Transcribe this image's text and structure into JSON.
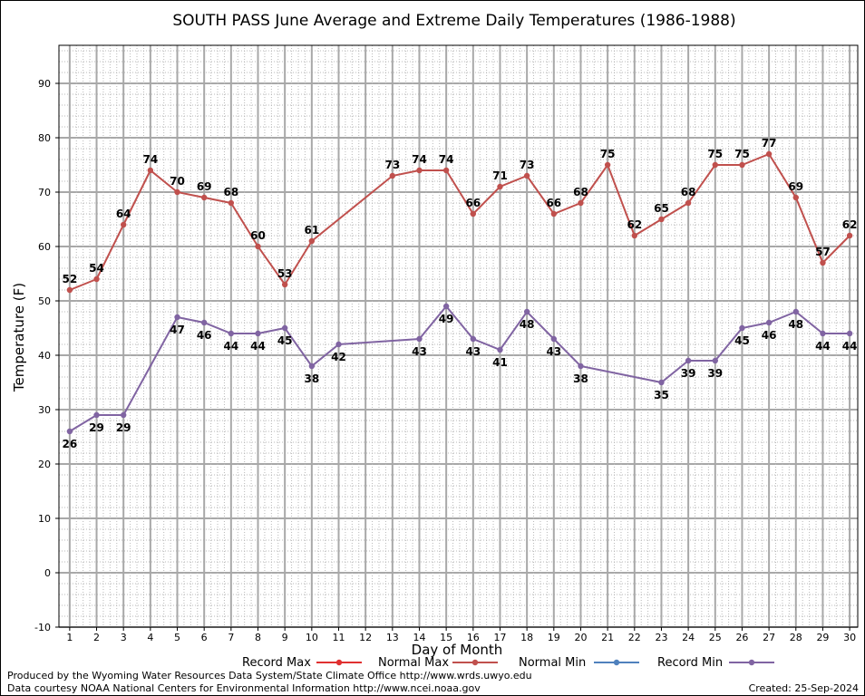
{
  "chart_data": {
    "type": "line",
    "title": "SOUTH PASS June Average and Extreme Daily Temperatures (1986-1988)",
    "xlabel": "Day of Month",
    "ylabel": "Temperature (F)",
    "ylim": [
      -10,
      97
    ],
    "xlim": [
      0.6,
      30.3
    ],
    "yticks": [
      -10,
      0,
      10,
      20,
      30,
      40,
      50,
      60,
      70,
      80,
      90
    ],
    "xticks": [
      1,
      2,
      3,
      4,
      5,
      6,
      7,
      8,
      9,
      10,
      11,
      12,
      13,
      14,
      15,
      16,
      17,
      18,
      19,
      20,
      21,
      22,
      23,
      24,
      25,
      26,
      27,
      28,
      29,
      30
    ],
    "grid": true,
    "legend_position": "bottom",
    "legend": [
      {
        "name": "Record Max",
        "color": "#e03030"
      },
      {
        "name": "Normal Max",
        "color": "#c0504d"
      },
      {
        "name": "Normal Min",
        "color": "#4f81bd"
      },
      {
        "name": "Record Min",
        "color": "#8064a2"
      }
    ],
    "series": [
      {
        "name": "Normal Max",
        "color": "#c0504d",
        "points": [
          [
            1,
            52
          ],
          [
            2,
            54
          ],
          [
            3,
            64
          ],
          [
            4,
            74
          ],
          [
            5,
            70
          ],
          [
            6,
            69
          ],
          [
            7,
            68
          ],
          [
            8,
            60
          ],
          [
            9,
            53
          ],
          [
            10,
            61
          ],
          [
            13,
            73
          ],
          [
            14,
            74
          ],
          [
            15,
            74
          ],
          [
            16,
            66
          ],
          [
            17,
            71
          ],
          [
            18,
            73
          ],
          [
            19,
            66
          ],
          [
            20,
            68
          ],
          [
            21,
            75
          ],
          [
            22,
            62
          ],
          [
            23,
            65
          ],
          [
            24,
            68
          ],
          [
            25,
            75
          ],
          [
            26,
            75
          ],
          [
            27,
            77
          ],
          [
            28,
            69
          ],
          [
            29,
            57
          ],
          [
            30,
            62
          ]
        ]
      },
      {
        "name": "Record Min",
        "color": "#8064a2",
        "points": [
          [
            1,
            26
          ],
          [
            2,
            29
          ],
          [
            3,
            29
          ],
          [
            5,
            47
          ],
          [
            6,
            46
          ],
          [
            7,
            44
          ],
          [
            8,
            44
          ],
          [
            9,
            45
          ],
          [
            10,
            38
          ],
          [
            11,
            42
          ],
          [
            14,
            43
          ],
          [
            15,
            49
          ],
          [
            16,
            43
          ],
          [
            17,
            41
          ],
          [
            18,
            48
          ],
          [
            19,
            43
          ],
          [
            20,
            38
          ],
          [
            23,
            35
          ],
          [
            24,
            39
          ],
          [
            25,
            39
          ],
          [
            26,
            45
          ],
          [
            27,
            46
          ],
          [
            28,
            48
          ],
          [
            29,
            44
          ],
          [
            30,
            44
          ]
        ]
      }
    ]
  },
  "footer": {
    "produced_by": "Produced by the Wyoming Water Resources Data System/State Climate Office http://www.wrds.uwyo.edu",
    "data_courtesy": "Data courtesy NOAA National Centers for Environmental Information http://www.ncei.noaa.gov",
    "created": "Created:  25-Sep-2024"
  }
}
